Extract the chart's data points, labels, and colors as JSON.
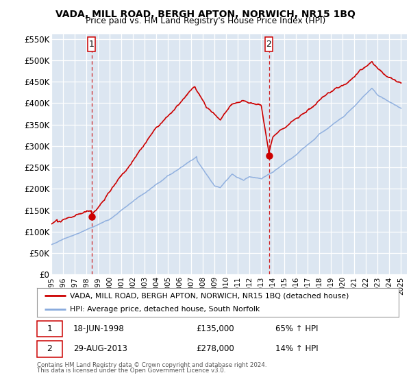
{
  "title": "VADA, MILL ROAD, BERGH APTON, NORWICH, NR15 1BQ",
  "subtitle": "Price paid vs. HM Land Registry's House Price Index (HPI)",
  "ylim": [
    0,
    560000
  ],
  "yticks": [
    0,
    50000,
    100000,
    150000,
    200000,
    250000,
    300000,
    350000,
    400000,
    450000,
    500000,
    550000
  ],
  "ytick_labels": [
    "£0",
    "£50K",
    "£100K",
    "£150K",
    "£200K",
    "£250K",
    "£300K",
    "£350K",
    "£400K",
    "£450K",
    "£500K",
    "£550K"
  ],
  "xlim_start": 1995.0,
  "xlim_end": 2025.5,
  "sale1_x": 1998.46,
  "sale1_y": 135000,
  "sale2_x": 2013.66,
  "sale2_y": 278000,
  "red_color": "#cc0000",
  "blue_color": "#88aadd",
  "background_color": "#dce6f1",
  "legend_line1": "VADA, MILL ROAD, BERGH APTON, NORWICH, NR15 1BQ (detached house)",
  "legend_line2": "HPI: Average price, detached house, South Norfolk",
  "sale1_date": "18-JUN-1998",
  "sale1_price": "£135,000",
  "sale1_hpi": "65% ↑ HPI",
  "sale2_date": "29-AUG-2013",
  "sale2_price": "£278,000",
  "sale2_hpi": "14% ↑ HPI",
  "footer1": "Contains HM Land Registry data © Crown copyright and database right 2024.",
  "footer2": "This data is licensed under the Open Government Licence v3.0."
}
